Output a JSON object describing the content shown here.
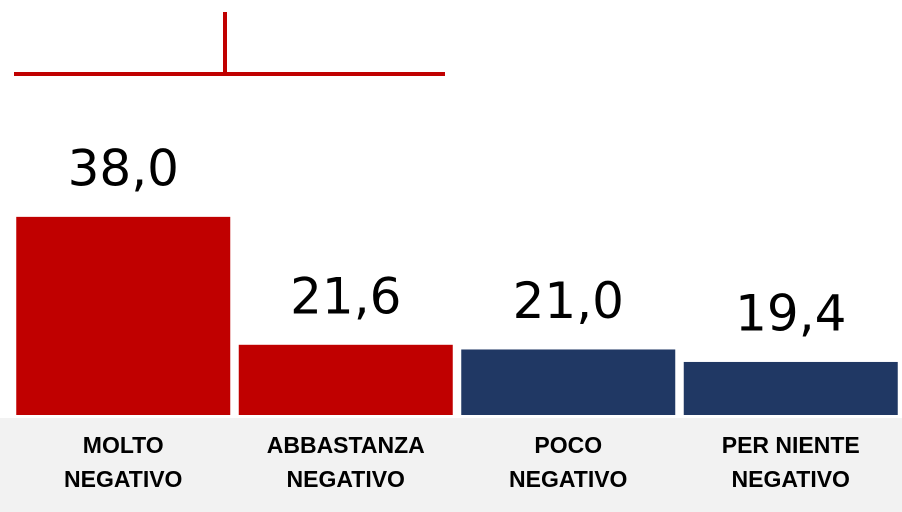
{
  "chart_data": {
    "type": "bar",
    "categories": [
      [
        "MOLTO",
        "NEGATIVO"
      ],
      [
        "ABBASTANZA",
        "NEGATIVO"
      ],
      [
        "POCO",
        "NEGATIVO"
      ],
      [
        "PER NIENTE",
        "NEGATIVO"
      ]
    ],
    "values": [
      38.0,
      21.6,
      21.0,
      19.4
    ],
    "value_labels": [
      "38,0",
      "21,6",
      "21,0",
      "19,4"
    ],
    "colors": [
      "#c00000",
      "#c00000",
      "#203864",
      "#203864"
    ],
    "ylim": [
      12.6,
      65.8
    ]
  }
}
